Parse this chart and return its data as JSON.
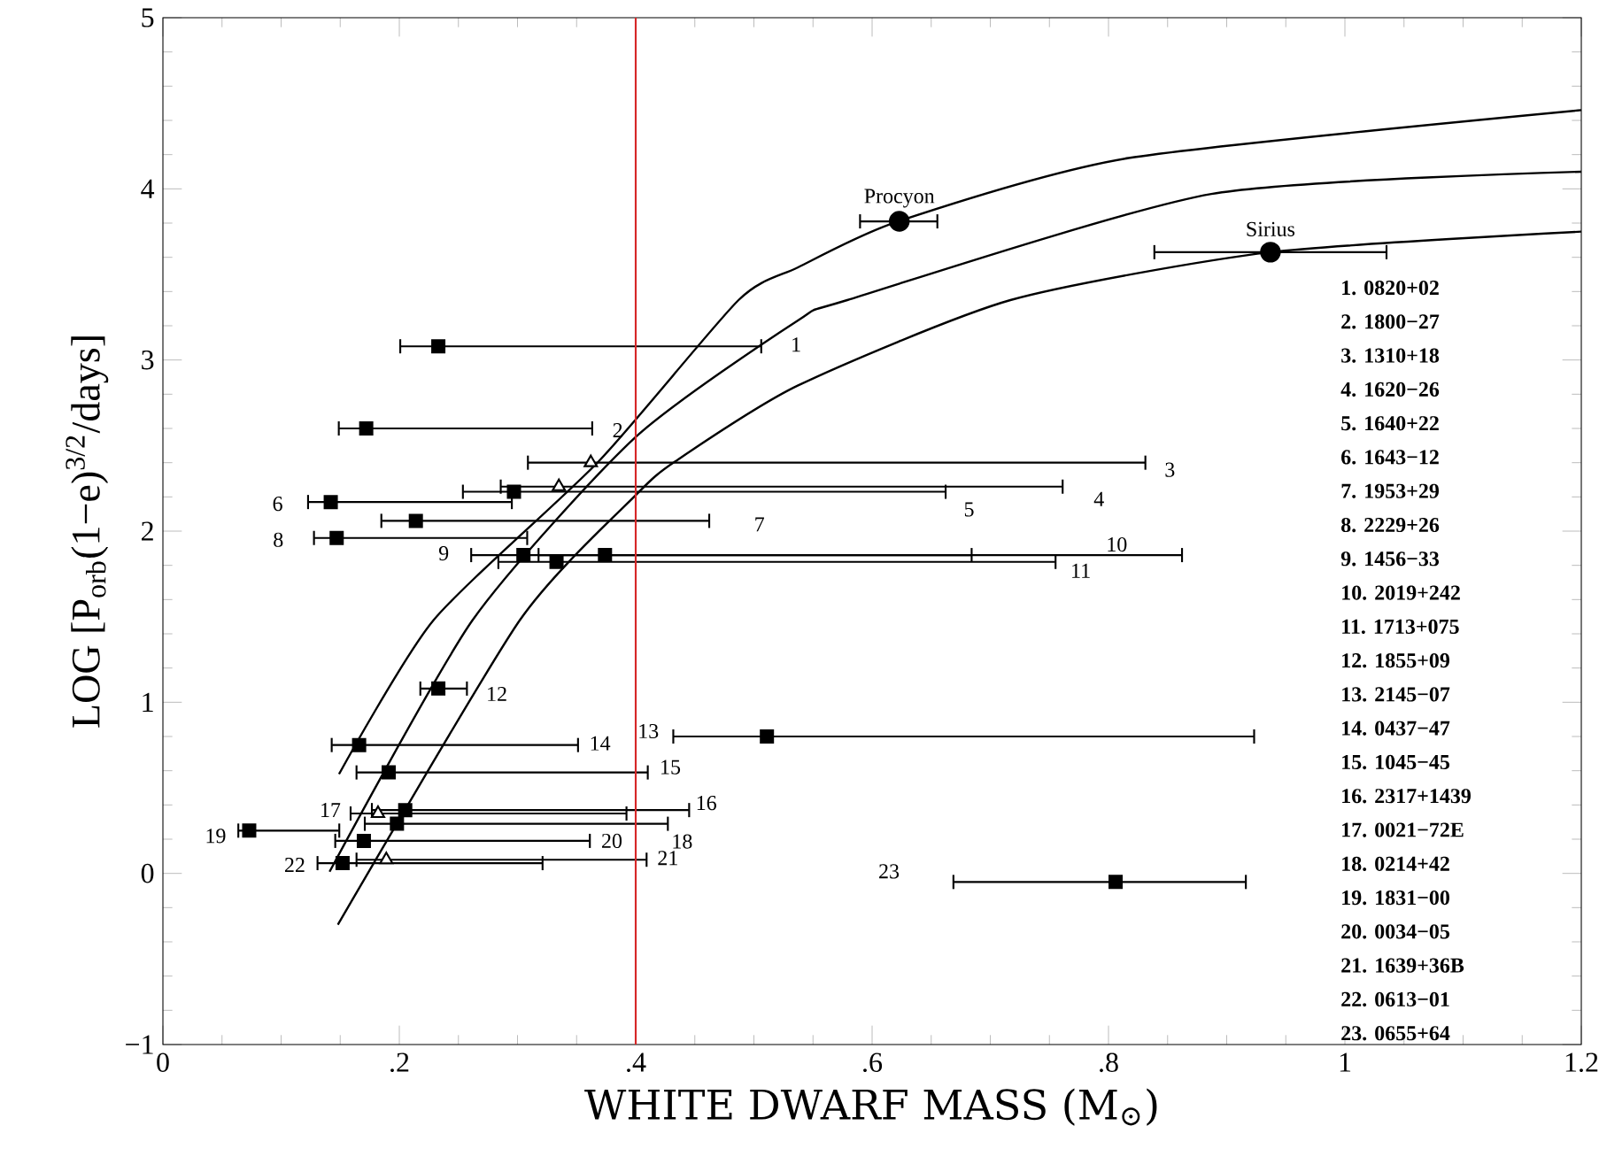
{
  "chart_data": {
    "type": "scatter",
    "xlabel": "WHITE DWARF MASS (M$_{⊙}$)",
    "ylabel": "LOG [P$_{orb}$(1−e)$^{3/2}$/days]",
    "xlim": [
      0,
      1.2
    ],
    "ylim": [
      -1,
      5
    ],
    "xticks": [
      0,
      {
        "value": 0.2,
        "label": ".2"
      },
      {
        "value": 0.4,
        "label": ".4"
      },
      {
        "value": 0.6,
        "label": ".6"
      },
      {
        "value": 0.8,
        "label": ".8"
      },
      1,
      1.2
    ],
    "yticks": [
      {
        "value": -1,
        "label": "−1"
      },
      0,
      1,
      2,
      3,
      4,
      5
    ],
    "grid": false,
    "series": [
      {
        "marker": "square",
        "color": "#000000",
        "x": [
          0.233,
          0.172,
          0.297,
          0.142,
          0.214,
          0.147,
          0.305,
          0.374,
          0.333,
          0.233,
          0.511,
          0.166,
          0.191,
          0.205,
          0.198,
          0.073,
          0.17,
          0.152,
          0.806
        ],
        "values": [
          3.08,
          2.6,
          2.23,
          2.17,
          2.06,
          1.96,
          1.86,
          1.86,
          1.82,
          1.08,
          0.8,
          0.75,
          0.59,
          0.37,
          0.29,
          0.25,
          0.19,
          0.06,
          -0.05
        ],
        "xerrors": [
          [
            0.2,
            0.507
          ],
          [
            0.148,
            0.364
          ],
          [
            0.253,
            0.663
          ],
          [
            0.122,
            0.296
          ],
          [
            0.184,
            0.463
          ],
          [
            0.127,
            0.309
          ],
          [
            0.26,
            0.685
          ],
          [
            0.317,
            0.863
          ],
          [
            0.283,
            0.756
          ],
          [
            0.217,
            0.258
          ],
          [
            0.431,
            0.924
          ],
          [
            0.142,
            0.352
          ],
          [
            0.163,
            0.411
          ],
          [
            0.176,
            0.446
          ],
          [
            0.17,
            0.428
          ],
          [
            0.063,
            0.15
          ],
          [
            0.145,
            0.362
          ],
          [
            0.13,
            0.322
          ],
          [
            0.668,
            0.917
          ]
        ]
      },
      {
        "marker": "triangle",
        "color": "#000000",
        "x": [
          0.362,
          0.335,
          0.182,
          0.189
        ],
        "values": [
          2.4,
          2.26,
          0.35,
          0.08
        ],
        "xerrors": [
          [
            0.308,
            0.832
          ],
          [
            0.285,
            0.762
          ],
          [
            0.158,
            0.393
          ],
          [
            0.163,
            0.41
          ]
        ]
      },
      {
        "marker": "circle",
        "color": "#000000",
        "x": [
          0.623,
          0.937
        ],
        "values": [
          3.81,
          3.63
        ],
        "xerrors": [
          [
            0.589,
            0.656
          ],
          [
            0.838,
            1.036
          ]
        ]
      },
      {
        "type": "line",
        "marker": "none",
        "color": "#000000",
        "x": [
          0.149,
          0.229,
          0.369,
          0.487,
          0.537,
          0.622,
          0.817,
          1.2
        ],
        "values": [
          0.58,
          1.48,
          2.41,
          3.35,
          3.54,
          3.81,
          4.18,
          4.46
        ]
      },
      {
        "type": "line",
        "marker": "none",
        "color": "#000000",
        "x": [
          0.141,
          0.262,
          0.4,
          0.537,
          0.579,
          0.887,
          1.2
        ],
        "values": [
          0.01,
          1.48,
          2.55,
          3.23,
          3.35,
          3.97,
          4.1
        ]
      },
      {
        "type": "line",
        "marker": "none",
        "color": "#000000",
        "x": [
          0.148,
          0.302,
          0.4,
          0.434,
          0.537,
          0.717,
          0.937,
          1.2
        ],
        "values": [
          -0.3,
          1.48,
          2.21,
          2.41,
          2.85,
          3.35,
          3.63,
          3.75
        ]
      }
    ],
    "ref_lines": [
      {
        "axis": "x",
        "value": 0.4,
        "color": "#d62728"
      }
    ],
    "annotations": [
      "1",
      "2",
      "3",
      "4",
      "5",
      "6",
      "7",
      "8",
      "9",
      "10",
      "11",
      "12",
      "13",
      "14",
      "15",
      "16",
      "17",
      "18",
      "19",
      "20",
      "21",
      "22",
      "23",
      {
        "text": "Procyon",
        "x": 0.623,
        "y": 3.81
      },
      {
        "text": "Sirius",
        "x": 0.937,
        "y": 3.63
      },
      "1. 0820+02",
      "2. 1800−27",
      "3. 1310+18",
      "4. 1620−26",
      "5. 1640+22",
      "6. 1643−12",
      "7. 1953+29",
      "8. 2229+26",
      "9. 1456−33",
      "10. 2019+242",
      "11. 1713+075",
      "12. 1855+09",
      "13. 2145−07",
      "14. 0437−47",
      "15. 1045−45",
      "16. 2317+1439",
      "17. 0021−72E",
      "18. 0214+42",
      "19. 1831−00",
      "20. 0034−05",
      "21. 1639+36B",
      "22. 0613−01",
      "23. 0655+64"
    ]
  }
}
